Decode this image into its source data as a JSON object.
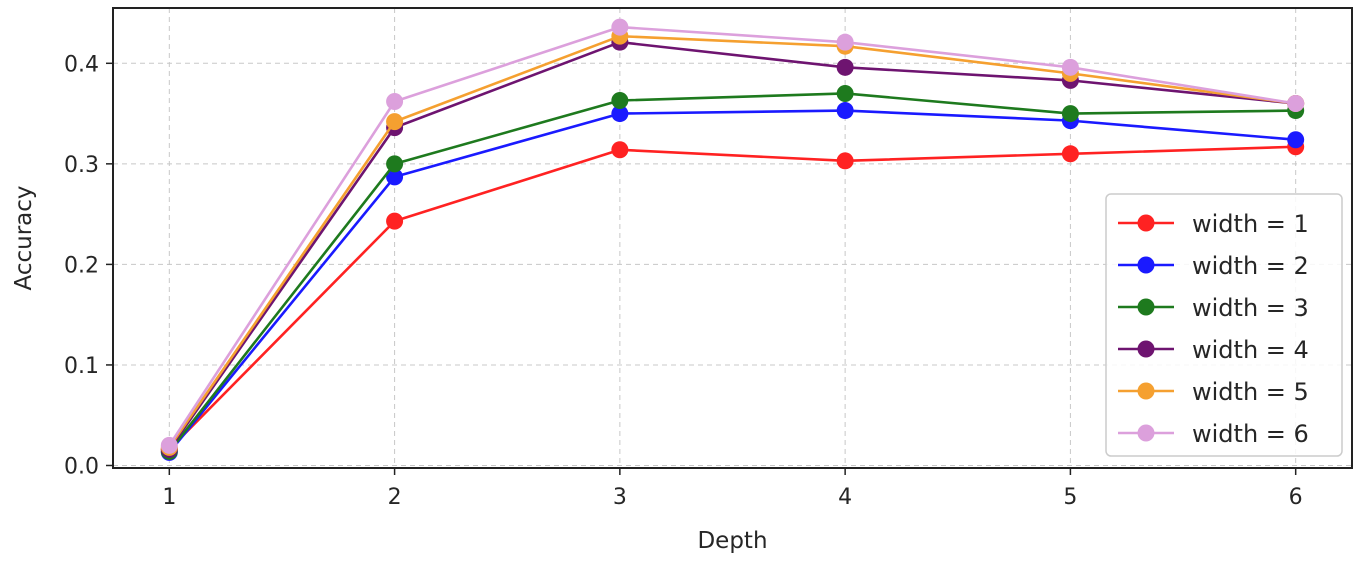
{
  "chart_data": {
    "type": "line",
    "title": "",
    "xlabel": "Depth",
    "ylabel": "Accuracy",
    "x": [
      1,
      2,
      3,
      4,
      5,
      6
    ],
    "xlim": [
      0.75,
      6.25
    ],
    "ylim": [
      -0.0025,
      0.455
    ],
    "xticks": [
      "1",
      "2",
      "3",
      "4",
      "5",
      "6"
    ],
    "yticks": [
      "0.0",
      "0.1",
      "0.2",
      "0.3",
      "0.4"
    ],
    "grid": true,
    "legend_position": "lower right",
    "series": [
      {
        "name": "width = 1",
        "color": "#ff2222",
        "values": [
          0.016,
          0.243,
          0.314,
          0.303,
          0.31,
          0.317
        ]
      },
      {
        "name": "width = 2",
        "color": "#1a1aff",
        "values": [
          0.013,
          0.287,
          0.35,
          0.353,
          0.343,
          0.324
        ]
      },
      {
        "name": "width = 3",
        "color": "#1e7a1e",
        "values": [
          0.014,
          0.3,
          0.363,
          0.37,
          0.35,
          0.353
        ]
      },
      {
        "name": "width = 4",
        "color": "#6e1470",
        "values": [
          0.016,
          0.336,
          0.421,
          0.396,
          0.383,
          0.36
        ]
      },
      {
        "name": "width = 5",
        "color": "#f5a030",
        "values": [
          0.018,
          0.342,
          0.427,
          0.417,
          0.39,
          0.36
        ]
      },
      {
        "name": "width = 6",
        "color": "#dca0dc",
        "values": [
          0.02,
          0.362,
          0.436,
          0.421,
          0.396,
          0.36
        ]
      }
    ]
  }
}
